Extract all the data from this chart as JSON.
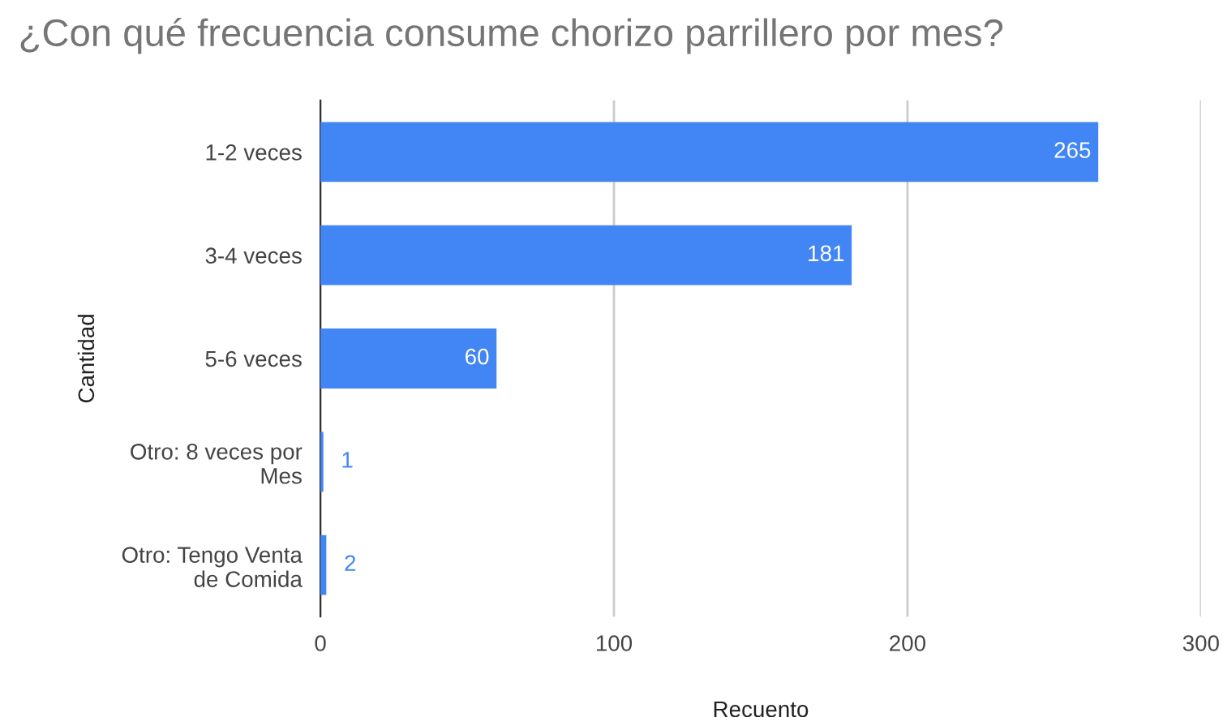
{
  "chart_data": {
    "type": "bar",
    "orientation": "horizontal",
    "title": "¿Con qué frecuencia consume chorizo parrillero por mes?",
    "xlabel": "Recuento",
    "ylabel": "Cantidad",
    "categories": [
      "1-2 veces",
      "3-4 veces",
      "5-6 veces",
      "Otro: 8 veces por\nMes",
      "Otro: Tengo Venta\nde Comida"
    ],
    "values": [
      265,
      181,
      60,
      1,
      2
    ],
    "color": "#4285f4",
    "xlim": [
      0,
      300
    ],
    "xticks": [
      0,
      100,
      200,
      300
    ],
    "grid": "x",
    "data_labels": true,
    "legend": false
  }
}
